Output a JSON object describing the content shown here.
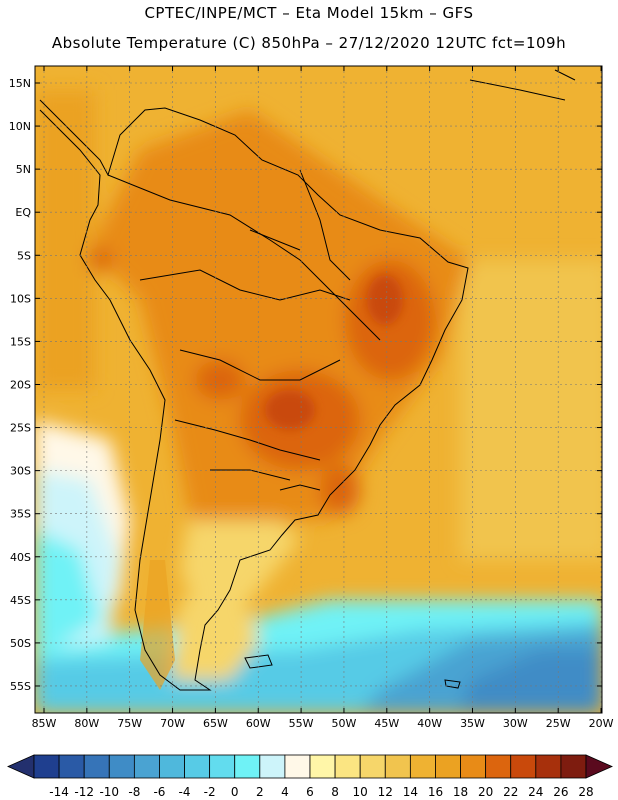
{
  "header": {
    "line1": "CPTEC/INPE/MCT –  Eta Model 15km – GFS",
    "line2": "Absolute Temperature (C) 850hPa – 27/12/2020 12UTC fct=109h"
  },
  "axes": {
    "lat_labels": [
      "15N",
      "10N",
      "5N",
      "EQ",
      "5S",
      "10S",
      "15S",
      "20S",
      "25S",
      "30S",
      "35S",
      "40S",
      "45S",
      "50S",
      "55S"
    ],
    "lon_labels": [
      "85W",
      "80W",
      "75W",
      "70W",
      "65W",
      "60W",
      "55W",
      "50W",
      "45W",
      "40W",
      "35W",
      "30W",
      "25W",
      "20W"
    ]
  },
  "colorbar": {
    "labels": [
      "-14",
      "-12",
      "-10",
      "-8",
      "-6",
      "-4",
      "-2",
      "0",
      "2",
      "4",
      "6",
      "8",
      "10",
      "12",
      "14",
      "16",
      "18",
      "20",
      "22",
      "24",
      "26",
      "28"
    ],
    "colors": [
      "#1f3f8f",
      "#2a5aa6",
      "#3674b8",
      "#3f8cc6",
      "#4aa3d2",
      "#4fb8dc",
      "#57cbe6",
      "#62dcee",
      "#6ff2f6",
      "#cdf4fa",
      "#fff8e8",
      "#fff6a8",
      "#fbe582",
      "#f6d66a",
      "#f1c44e",
      "#efb232",
      "#eba222",
      "#e88b17",
      "#dc650e",
      "#c9490b",
      "#a7300c",
      "#7e1c0f"
    ]
  },
  "map": {
    "variable": "Absolute Temperature",
    "units": "C",
    "level": "850hPa"
  }
}
